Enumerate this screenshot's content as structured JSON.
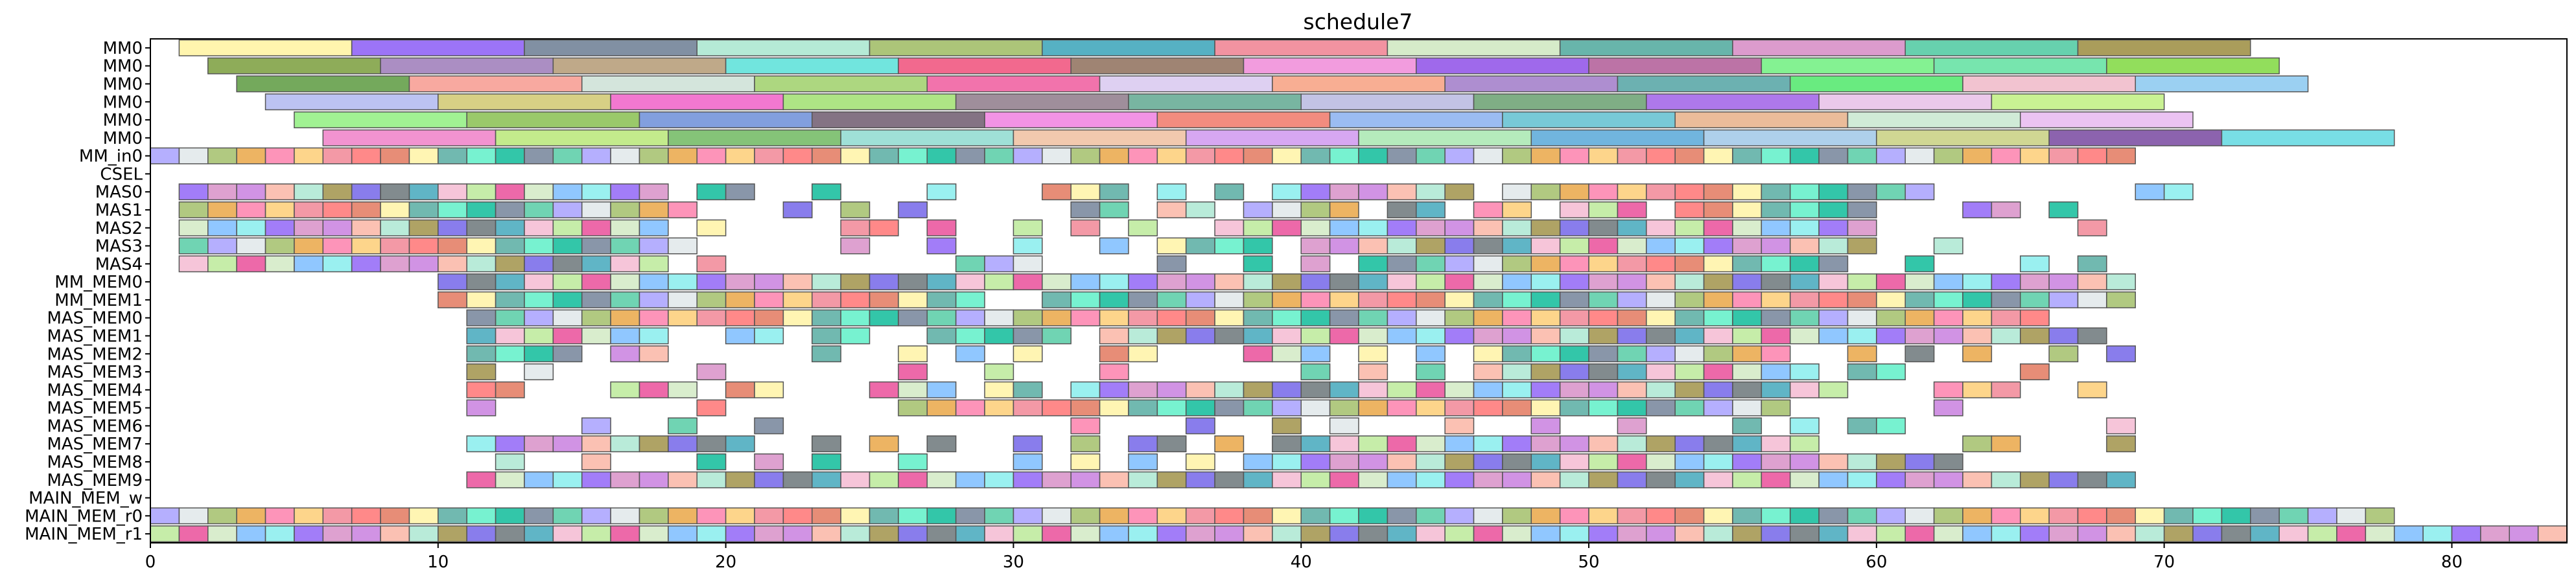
{
  "chart_data": {
    "type": "gantt",
    "title": "schedule7",
    "xlabel": "",
    "ylabel": "",
    "xlim": [
      0,
      84
    ],
    "xticks": [
      0,
      10,
      20,
      30,
      40,
      50,
      60,
      70,
      80
    ],
    "grid": false,
    "legend": "none",
    "rows": [
      "MM0",
      "MM0",
      "MM0",
      "MM0",
      "MM0",
      "MM0",
      "MM_in0",
      "CSEL",
      "MAS0",
      "MAS1",
      "MAS2",
      "MAS3",
      "MAS4",
      "MM_MEM0",
      "MM_MEM1",
      "MAS_MEM0",
      "MAS_MEM1",
      "MAS_MEM2",
      "MAS_MEM3",
      "MAS_MEM4",
      "MAS_MEM5",
      "MAS_MEM6",
      "MAS_MEM7",
      "MAS_MEM8",
      "MAS_MEM9",
      "MAIN_MEM_w",
      "MAIN_MEM_r0",
      "MAIN_MEM_r1"
    ],
    "palette": [
      "#fff3a0",
      "#8b5cf6",
      "#6b7c93",
      "#a8e6cf",
      "#9dbb61",
      "#38a3b8",
      "#f08090",
      "#cfe8c0",
      "#4ea89c",
      "#d68ac4",
      "#4cc9a0",
      "#9b8c3e",
      "#e9a13c",
      "#f4b7d0",
      "#ff6b6b",
      "#74b9ff",
      "#55efc4",
      "#c678dd",
      "#a29bfe",
      "#6c5ce7",
      "#fd79a8",
      "#b8e994",
      "#e17055",
      "#81ecec",
      "#00b894",
      "#fab1a0",
      "#dfe6e9",
      "#636e72",
      "#fdcb6e",
      "#e84393"
    ],
    "bands": [
      {
        "row": 0,
        "start": 1,
        "colors": [
          "#fff3a0",
          "#8b5cf6",
          "#6b7c93",
          "#a8e6cf",
          "#9dbb61",
          "#38a3b8",
          "#f08090",
          "#cfe8c0",
          "#4ea89c",
          "#d68ac4",
          "#4cc9a0",
          "#9b8c3e"
        ],
        "width": 6
      },
      {
        "row": 1,
        "start": 2,
        "colors": [
          "#7a9e3c",
          "#9c7ab8",
          "#b49a74",
          "#58e0d8",
          "#f04f7a",
          "#8e6f5a",
          "#f08bd8",
          "#8e4fe8",
          "#b05a96",
          "#6ff07f",
          "#5fe0a0",
          "#7fd840"
        ],
        "width": 6
      },
      {
        "row": 2,
        "start": 3,
        "colors": [
          "#5c9a40",
          "#f79a8f",
          "#cde0d6",
          "#9fd06a",
          "#f05a9e",
          "#d8c8f0",
          "#f7a080",
          "#a07ac8",
          "#52a3a3",
          "#4fe86a",
          "#f0b8c8",
          "#8ac8f0"
        ],
        "width": 6
      },
      {
        "row": 3,
        "start": 4,
        "colors": [
          "#b0b8f0",
          "#d0c870",
          "#f060c8",
          "#a0e070",
          "#8e7a8a",
          "#60a890",
          "#b8b8e0",
          "#68a070",
          "#a060e8",
          "#e8c0e8",
          "#c0f080"
        ],
        "width": 6
      },
      {
        "row": 4,
        "start": 5,
        "colors": [
          "#90f080",
          "#88c050",
          "#6c8ed8",
          "#6e5a6e",
          "#f080e0",
          "#f07868",
          "#8ab0f0",
          "#60c0d0",
          "#e8b088",
          "#c8e8d0",
          "#e8b8f0"
        ],
        "width": 6
      },
      {
        "row": 5,
        "start": 6,
        "colors": [
          "#f080c8",
          "#b8e878",
          "#70b860",
          "#8edbd0",
          "#f0c0a0",
          "#d098f0",
          "#a8e8b0",
          "#58a8d8",
          "#a0c8e8",
          "#c8d080",
          "#7848a0",
          "#60d8e0"
        ],
        "width": 6
      }
    ],
    "cell_rows_note": "Rows 6 onward are unit-width tasks; filled cells listed by start time.",
    "cells": {
      "6": [
        0,
        1,
        2,
        3,
        4,
        5,
        6,
        7,
        8,
        9,
        10,
        11,
        12,
        13,
        14,
        15,
        16,
        17,
        18,
        19,
        20,
        21,
        22,
        23,
        24,
        25,
        26,
        27,
        28,
        29,
        30,
        31,
        32,
        33,
        34,
        35,
        36,
        37,
        38,
        39,
        40,
        41,
        42,
        43,
        44,
        45,
        46,
        47,
        48,
        49,
        50,
        51,
        52,
        53,
        54,
        55,
        56,
        57,
        58,
        59,
        60,
        61,
        62,
        63,
        64,
        65,
        66,
        67,
        68
      ],
      "8": [
        1,
        2,
        3,
        4,
        5,
        6,
        7,
        8,
        9,
        10,
        11,
        12,
        13,
        14,
        15,
        16,
        17,
        19,
        20,
        23,
        27,
        31,
        32,
        33,
        35,
        37,
        39,
        40,
        41,
        42,
        43,
        44,
        45,
        47,
        48,
        49,
        50,
        51,
        52,
        53,
        54,
        55,
        56,
        57,
        58,
        59,
        60,
        61,
        69,
        70
      ],
      "9": [
        1,
        2,
        3,
        4,
        5,
        6,
        7,
        8,
        9,
        10,
        11,
        12,
        13,
        14,
        15,
        16,
        17,
        18,
        22,
        24,
        26,
        32,
        33,
        35,
        36,
        38,
        39,
        40,
        41,
        43,
        44,
        46,
        47,
        49,
        50,
        51,
        53,
        54,
        55,
        56,
        57,
        58,
        59,
        63,
        64,
        66
      ],
      "10": [
        1,
        2,
        3,
        4,
        5,
        6,
        7,
        8,
        9,
        10,
        11,
        12,
        13,
        14,
        15,
        16,
        17,
        19,
        24,
        25,
        27,
        30,
        32,
        34,
        37,
        38,
        39,
        40,
        41,
        42,
        43,
        44,
        45,
        46,
        47,
        48,
        49,
        50,
        51,
        52,
        53,
        54,
        55,
        56,
        57,
        58,
        59,
        67
      ],
      "11": [
        1,
        2,
        3,
        4,
        5,
        6,
        7,
        8,
        9,
        10,
        11,
        12,
        13,
        14,
        15,
        16,
        17,
        18,
        24,
        27,
        30,
        33,
        35,
        36,
        37,
        38,
        40,
        41,
        42,
        43,
        44,
        45,
        46,
        47,
        48,
        49,
        50,
        51,
        52,
        53,
        54,
        55,
        56,
        57,
        58,
        59,
        62
      ],
      "12": [
        1,
        2,
        3,
        4,
        5,
        6,
        7,
        8,
        9,
        10,
        11,
        12,
        13,
        14,
        15,
        16,
        17,
        19,
        28,
        29,
        30,
        35,
        38,
        40,
        42,
        43,
        44,
        45,
        46,
        47,
        48,
        49,
        50,
        51,
        52,
        53,
        54,
        55,
        56,
        57,
        58,
        61,
        65,
        67
      ],
      "13": [
        10,
        11,
        12,
        13,
        14,
        15,
        16,
        17,
        18,
        19,
        20,
        21,
        22,
        23,
        24,
        25,
        26,
        27,
        28,
        29,
        30,
        31,
        32,
        33,
        34,
        35,
        36,
        37,
        38,
        39,
        40,
        41,
        42,
        43,
        44,
        45,
        46,
        47,
        48,
        49,
        50,
        51,
        52,
        53,
        54,
        55,
        56,
        57,
        58,
        59,
        60,
        61,
        62,
        63,
        64,
        65,
        66,
        67,
        68
      ],
      "14": [
        10,
        11,
        12,
        13,
        14,
        15,
        16,
        17,
        18,
        19,
        20,
        21,
        22,
        23,
        24,
        25,
        26,
        27,
        28,
        31,
        32,
        33,
        34,
        35,
        36,
        37,
        38,
        39,
        40,
        41,
        42,
        43,
        44,
        45,
        46,
        47,
        48,
        49,
        50,
        51,
        52,
        53,
        54,
        55,
        56,
        57,
        58,
        59,
        60,
        61,
        62,
        63,
        64,
        65,
        66,
        67,
        68
      ],
      "15": [
        11,
        12,
        13,
        14,
        15,
        16,
        17,
        18,
        19,
        20,
        21,
        22,
        23,
        24,
        25,
        26,
        27,
        28,
        29,
        30,
        31,
        32,
        33,
        34,
        35,
        36,
        37,
        38,
        39,
        40,
        41,
        42,
        43,
        44,
        45,
        46,
        47,
        48,
        49,
        50,
        51,
        52,
        53,
        54,
        55,
        56,
        57,
        58,
        59,
        60,
        61,
        62,
        63,
        64,
        65
      ],
      "16": [
        11,
        12,
        13,
        14,
        15,
        16,
        17,
        20,
        21,
        23,
        24,
        27,
        28,
        29,
        30,
        31,
        33,
        34,
        35,
        36,
        37,
        38,
        39,
        40,
        41,
        42,
        43,
        44,
        45,
        46,
        47,
        48,
        49,
        50,
        51,
        52,
        53,
        54,
        55,
        56,
        57,
        58,
        59,
        60,
        61,
        62,
        63,
        64,
        65,
        66,
        67
      ],
      "17": [
        11,
        12,
        13,
        14,
        16,
        17,
        23,
        26,
        28,
        30,
        33,
        34,
        38,
        39,
        40,
        42,
        44,
        46,
        47,
        48,
        49,
        50,
        51,
        52,
        53,
        54,
        55,
        56,
        59,
        61,
        63,
        66,
        68
      ],
      "18": [
        11,
        13,
        19,
        26,
        29,
        33,
        40,
        42,
        44,
        46,
        47,
        48,
        49,
        50,
        51,
        52,
        53,
        54,
        55,
        56,
        57,
        59,
        60,
        65
      ],
      "19": [
        11,
        12,
        16,
        17,
        18,
        20,
        21,
        25,
        26,
        27,
        29,
        30,
        32,
        33,
        34,
        35,
        36,
        37,
        38,
        39,
        40,
        41,
        42,
        43,
        44,
        45,
        46,
        47,
        48,
        49,
        50,
        51,
        52,
        53,
        54,
        55,
        56,
        57,
        58,
        62,
        63,
        64,
        67
      ],
      "20": [
        11,
        19,
        26,
        27,
        28,
        29,
        30,
        31,
        32,
        33,
        34,
        35,
        36,
        37,
        38,
        39,
        40,
        41,
        42,
        43,
        44,
        45,
        46,
        47,
        48,
        49,
        50,
        51,
        52,
        53,
        54,
        55,
        56,
        62
      ],
      "21": [
        15,
        18,
        21,
        32,
        36,
        39,
        41,
        45,
        48,
        51,
        55,
        57,
        59,
        60,
        68
      ],
      "22": [
        11,
        12,
        13,
        14,
        15,
        16,
        17,
        18,
        19,
        20,
        23,
        25,
        27,
        30,
        32,
        34,
        35,
        37,
        39,
        40,
        41,
        42,
        43,
        44,
        45,
        46,
        47,
        48,
        49,
        50,
        51,
        52,
        53,
        54,
        55,
        56,
        57,
        63,
        64,
        68
      ],
      "23": [
        12,
        15,
        19,
        21,
        23,
        26,
        30,
        32,
        34,
        36,
        38,
        39,
        40,
        41,
        42,
        43,
        44,
        45,
        46,
        47,
        48,
        49,
        50,
        51,
        52,
        53,
        54,
        55,
        56,
        57,
        58,
        59,
        60,
        61,
        62
      ],
      "24": [
        11,
        12,
        13,
        14,
        15,
        16,
        17,
        18,
        19,
        20,
        21,
        22,
        23,
        24,
        25,
        26,
        27,
        28,
        29,
        30,
        31,
        32,
        33,
        34,
        35,
        36,
        37,
        38,
        39,
        40,
        41,
        42,
        43,
        44,
        45,
        46,
        47,
        48,
        49,
        50,
        51,
        52,
        53,
        54,
        55,
        56,
        57,
        58,
        59,
        60,
        61,
        62,
        63,
        64,
        65,
        66,
        67,
        68
      ],
      "26": [
        0,
        1,
        2,
        3,
        4,
        5,
        6,
        7,
        8,
        9,
        10,
        11,
        12,
        13,
        14,
        15,
        16,
        17,
        18,
        19,
        20,
        21,
        22,
        23,
        24,
        25,
        26,
        27,
        28,
        29,
        30,
        31,
        32,
        33,
        34,
        35,
        36,
        37,
        38,
        39,
        40,
        41,
        42,
        43,
        44,
        45,
        46,
        47,
        48,
        49,
        50,
        51,
        52,
        53,
        54,
        55,
        56,
        57,
        58,
        59,
        60,
        61,
        62,
        63,
        64,
        65,
        66,
        67,
        68,
        69,
        70,
        71,
        72,
        73,
        74,
        75,
        76,
        77
      ],
      "27": [
        0,
        1,
        2,
        3,
        4,
        5,
        6,
        7,
        8,
        9,
        10,
        11,
        12,
        13,
        14,
        15,
        16,
        17,
        18,
        19,
        20,
        21,
        22,
        23,
        24,
        25,
        26,
        27,
        28,
        29,
        30,
        31,
        32,
        33,
        34,
        35,
        36,
        37,
        38,
        39,
        40,
        41,
        42,
        43,
        44,
        45,
        46,
        47,
        48,
        49,
        50,
        51,
        52,
        53,
        54,
        55,
        56,
        57,
        58,
        59,
        60,
        61,
        62,
        63,
        64,
        65,
        66,
        67,
        68,
        69,
        70,
        71,
        72,
        73,
        74,
        75,
        76,
        77,
        78,
        79,
        80,
        81,
        82,
        83
      ]
    }
  }
}
